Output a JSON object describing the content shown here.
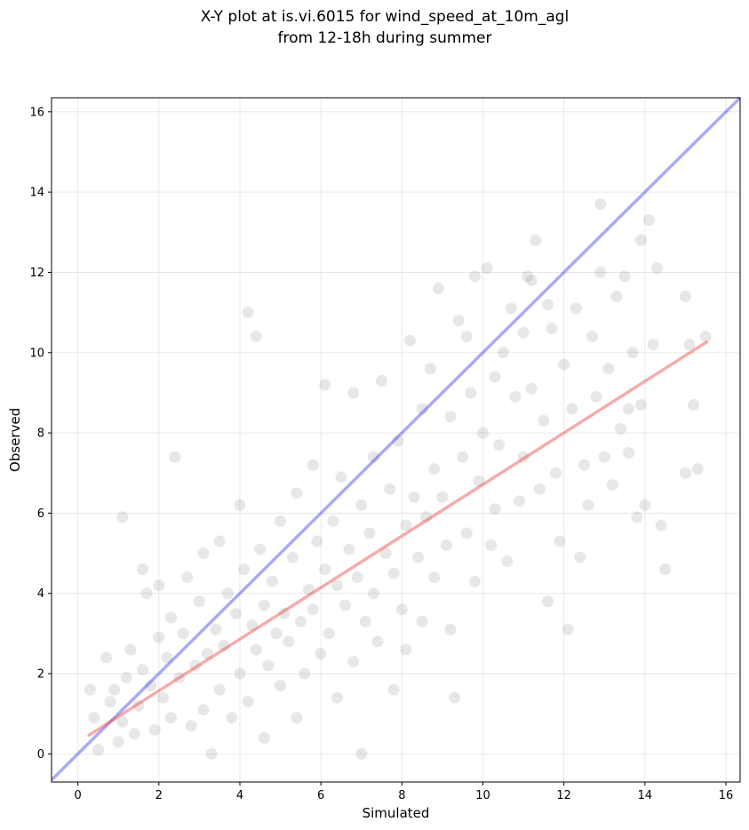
{
  "chart_data": {
    "type": "scatter",
    "title_line1": "X-Y plot at is.vi.6015 for wind_speed_at_10m_agl",
    "title_line2": "from 12-18h during summer",
    "xlabel": "Simulated",
    "ylabel": "Observed",
    "xlim": [
      -0.65,
      16.35
    ],
    "ylim": [
      -0.7,
      16.35
    ],
    "xticks": [
      0,
      2,
      4,
      6,
      8,
      10,
      12,
      14,
      16
    ],
    "yticks": [
      0,
      2,
      4,
      6,
      8,
      10,
      12,
      14,
      16
    ],
    "grid": true,
    "point_color": "#555555",
    "point_alpha": 0.14,
    "identity_line": {
      "color": "#3333ee",
      "x": [
        -0.65,
        16.35
      ],
      "y": [
        -0.65,
        16.35
      ]
    },
    "regression_line": {
      "color": "#ee4444",
      "x": [
        0.25,
        15.55
      ],
      "y": [
        0.45,
        10.28
      ]
    },
    "series": [
      {
        "values": [
          [
            1.1,
            5.9
          ],
          [
            0.4,
            0.9
          ],
          [
            0.3,
            1.6
          ],
          [
            0.5,
            0.1
          ],
          [
            0.7,
            2.4
          ],
          [
            0.8,
            1.3
          ],
          [
            0.9,
            1.6
          ],
          [
            1.0,
            0.3
          ],
          [
            1.1,
            0.8
          ],
          [
            1.2,
            1.9
          ],
          [
            1.3,
            2.6
          ],
          [
            1.4,
            0.5
          ],
          [
            1.5,
            1.2
          ],
          [
            1.6,
            2.1
          ],
          [
            1.6,
            4.6
          ],
          [
            1.7,
            4.0
          ],
          [
            1.8,
            1.7
          ],
          [
            1.9,
            0.6
          ],
          [
            2.0,
            2.9
          ],
          [
            2.0,
            4.2
          ],
          [
            2.1,
            1.4
          ],
          [
            2.2,
            2.4
          ],
          [
            2.3,
            0.9
          ],
          [
            2.3,
            3.4
          ],
          [
            2.4,
            7.4
          ],
          [
            2.5,
            1.9
          ],
          [
            2.6,
            3.0
          ],
          [
            2.7,
            4.4
          ],
          [
            2.8,
            0.7
          ],
          [
            2.9,
            2.2
          ],
          [
            3.0,
            3.8
          ],
          [
            3.1,
            1.1
          ],
          [
            3.1,
            5.0
          ],
          [
            3.2,
            2.5
          ],
          [
            3.3,
            0.0
          ],
          [
            3.4,
            3.1
          ],
          [
            3.5,
            1.6
          ],
          [
            3.5,
            5.3
          ],
          [
            3.6,
            2.7
          ],
          [
            3.7,
            4.0
          ],
          [
            3.8,
            0.9
          ],
          [
            3.9,
            3.5
          ],
          [
            4.0,
            2.0
          ],
          [
            4.0,
            6.2
          ],
          [
            4.1,
            4.6
          ],
          [
            4.2,
            11.0
          ],
          [
            4.2,
            1.3
          ],
          [
            4.3,
            3.2
          ],
          [
            4.4,
            10.4
          ],
          [
            4.4,
            2.6
          ],
          [
            4.5,
            5.1
          ],
          [
            4.6,
            3.7
          ],
          [
            4.6,
            0.4
          ],
          [
            4.7,
            2.2
          ],
          [
            4.8,
            4.3
          ],
          [
            4.9,
            3.0
          ],
          [
            5.0,
            5.8
          ],
          [
            5.0,
            1.7
          ],
          [
            5.1,
            3.5
          ],
          [
            5.2,
            2.8
          ],
          [
            5.3,
            4.9
          ],
          [
            5.4,
            6.5
          ],
          [
            5.4,
            0.9
          ],
          [
            5.5,
            3.3
          ],
          [
            5.6,
            2.0
          ],
          [
            5.7,
            4.1
          ],
          [
            5.8,
            3.6
          ],
          [
            5.8,
            7.2
          ],
          [
            5.9,
            5.3
          ],
          [
            6.0,
            2.5
          ],
          [
            6.1,
            4.6
          ],
          [
            6.1,
            9.2
          ],
          [
            6.2,
            3.0
          ],
          [
            6.3,
            5.8
          ],
          [
            6.4,
            1.4
          ],
          [
            6.4,
            4.2
          ],
          [
            6.5,
            6.9
          ],
          [
            6.6,
            3.7
          ],
          [
            6.7,
            5.1
          ],
          [
            6.8,
            2.3
          ],
          [
            6.8,
            9.0
          ],
          [
            6.9,
            4.4
          ],
          [
            7.0,
            6.2
          ],
          [
            7.0,
            0.0
          ],
          [
            7.1,
            3.3
          ],
          [
            7.2,
            5.5
          ],
          [
            7.3,
            7.4
          ],
          [
            7.3,
            4.0
          ],
          [
            7.4,
            2.8
          ],
          [
            7.5,
            9.3
          ],
          [
            7.6,
            5.0
          ],
          [
            7.7,
            6.6
          ],
          [
            7.8,
            1.6
          ],
          [
            7.8,
            4.5
          ],
          [
            7.9,
            7.8
          ],
          [
            8.0,
            3.6
          ],
          [
            8.1,
            5.7
          ],
          [
            8.1,
            2.6
          ],
          [
            8.2,
            10.3
          ],
          [
            8.3,
            6.4
          ],
          [
            8.4,
            4.9
          ],
          [
            8.5,
            8.6
          ],
          [
            8.5,
            3.3
          ],
          [
            8.6,
            5.9
          ],
          [
            8.7,
            9.6
          ],
          [
            8.8,
            7.1
          ],
          [
            8.8,
            4.4
          ],
          [
            8.9,
            11.6
          ],
          [
            9.0,
            6.4
          ],
          [
            9.1,
            5.2
          ],
          [
            9.2,
            8.4
          ],
          [
            9.2,
            3.1
          ],
          [
            9.3,
            1.4
          ],
          [
            9.4,
            10.8
          ],
          [
            9.5,
            7.4
          ],
          [
            9.6,
            5.5
          ],
          [
            9.7,
            9.0
          ],
          [
            9.8,
            4.3
          ],
          [
            9.8,
            11.9
          ],
          [
            9.9,
            6.8
          ],
          [
            10.0,
            8.0
          ],
          [
            10.1,
            12.1
          ],
          [
            10.2,
            5.2
          ],
          [
            10.3,
            9.4
          ],
          [
            10.3,
            6.1
          ],
          [
            10.4,
            7.7
          ],
          [
            10.5,
            10.0
          ],
          [
            10.6,
            4.8
          ],
          [
            10.7,
            11.1
          ],
          [
            10.8,
            8.9
          ],
          [
            10.9,
            6.3
          ],
          [
            11.0,
            10.5
          ],
          [
            11.0,
            7.4
          ],
          [
            11.1,
            11.9
          ],
          [
            11.2,
            9.1
          ],
          [
            11.3,
            12.8
          ],
          [
            11.4,
            6.6
          ],
          [
            11.5,
            8.3
          ],
          [
            11.6,
            3.8
          ],
          [
            11.6,
            11.2
          ],
          [
            11.7,
            10.6
          ],
          [
            11.8,
            7.0
          ],
          [
            11.9,
            5.3
          ],
          [
            12.0,
            9.7
          ],
          [
            12.1,
            3.1
          ],
          [
            12.2,
            8.6
          ],
          [
            12.3,
            11.1
          ],
          [
            12.4,
            4.9
          ],
          [
            12.5,
            7.2
          ],
          [
            12.6,
            6.2
          ],
          [
            12.7,
            10.4
          ],
          [
            12.8,
            8.9
          ],
          [
            12.9,
            12.0
          ],
          [
            12.9,
            13.7
          ],
          [
            13.0,
            7.4
          ],
          [
            13.1,
            9.6
          ],
          [
            13.2,
            6.7
          ],
          [
            13.3,
            11.4
          ],
          [
            13.4,
            8.1
          ],
          [
            13.5,
            11.9
          ],
          [
            13.6,
            7.5
          ],
          [
            13.7,
            10.0
          ],
          [
            13.8,
            5.9
          ],
          [
            13.9,
            8.7
          ],
          [
            13.9,
            12.8
          ],
          [
            14.0,
            6.2
          ],
          [
            14.1,
            13.3
          ],
          [
            14.2,
            10.2
          ],
          [
            14.3,
            12.1
          ],
          [
            14.4,
            5.7
          ],
          [
            14.5,
            4.6
          ],
          [
            15.0,
            11.4
          ],
          [
            15.0,
            7.0
          ],
          [
            15.1,
            10.2
          ],
          [
            15.2,
            8.7
          ],
          [
            15.3,
            7.1
          ],
          [
            15.5,
            10.4
          ],
          [
            13.6,
            8.6
          ],
          [
            9.6,
            10.4
          ],
          [
            11.2,
            11.8
          ]
        ]
      }
    ]
  }
}
